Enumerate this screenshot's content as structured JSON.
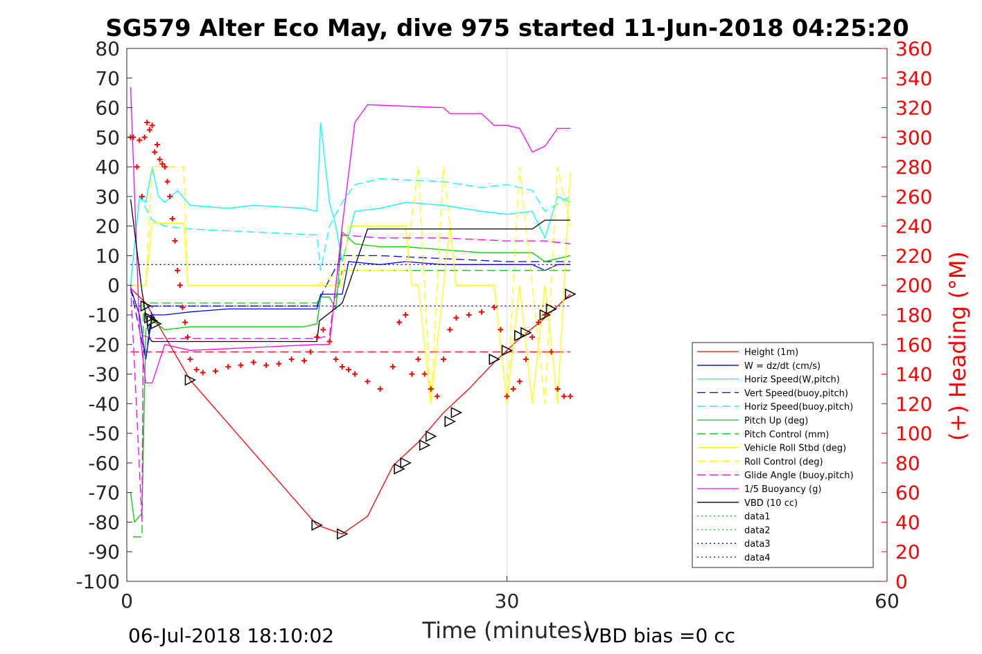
{
  "chart_data": {
    "type": "line",
    "title": "SG579 Alter Eco May, dive 975 started 11-Jun-2018 04:25:20",
    "xlabel": "Time (minutes)",
    "ylabel_right": "(+) Heading (°M)",
    "xlim": [
      0,
      60
    ],
    "ylim": [
      -100,
      80
    ],
    "ylim_right": [
      0,
      360
    ],
    "xticks": [
      "0",
      "30",
      "60"
    ],
    "yticks": [
      "80",
      "70",
      "60",
      "50",
      "40",
      "30",
      "20",
      "10",
      "0",
      "-10",
      "-20",
      "-30",
      "-40",
      "-50",
      "-60",
      "-70",
      "-80",
      "-90",
      "-100"
    ],
    "yticks_right": [
      "360",
      "340",
      "320",
      "300",
      "280",
      "260",
      "240",
      "220",
      "200",
      "180",
      "160",
      "140",
      "120",
      "100",
      "80",
      "60",
      "40",
      "20",
      "0"
    ],
    "grid": "x only",
    "legend_position": "lower-right",
    "footer_left": "06-Jul-2018 18:10:02",
    "footer_right": "VBD bias =0 cc",
    "series": [
      {
        "name": "Height (1m)",
        "color": "#ff0000",
        "style": "solid",
        "x": [
          0.3,
          1.5,
          5,
          15,
          17,
          19,
          21,
          23,
          25,
          27,
          29,
          31,
          33,
          35
        ],
        "y": [
          -1,
          -6,
          -32,
          -81,
          -84,
          -78,
          -61,
          -53,
          -43,
          -35,
          -26,
          -18,
          -11,
          -3
        ]
      },
      {
        "name": "W = dz/dt (cm/s)",
        "color": "#0000ff",
        "style": "solid",
        "x": [
          0.3,
          1,
          1.5,
          2,
          3,
          5,
          8,
          10,
          13,
          15,
          15.3,
          17,
          17.5,
          20,
          22,
          25,
          28,
          30,
          32,
          33,
          34,
          35
        ],
        "y": [
          -1,
          -10,
          -25,
          -10,
          -10,
          -9,
          -8,
          -8,
          -8,
          -8,
          -3,
          -3,
          8,
          7,
          8,
          7,
          7,
          7,
          7,
          5,
          7,
          7
        ]
      },
      {
        "name": "Horiz Speed(W,pitch)",
        "color": "#00ffff",
        "style": "solid",
        "x": [
          0.3,
          1,
          1.5,
          2,
          2.5,
          3,
          4,
          5,
          8,
          10,
          14,
          15,
          15.3,
          16,
          16.5,
          17,
          18,
          20,
          22,
          25,
          28,
          30,
          32,
          33,
          34,
          35
        ],
        "y": [
          0,
          30,
          28,
          40,
          30,
          28,
          32,
          27,
          26,
          27,
          26,
          25,
          55,
          28,
          20,
          8,
          25,
          26,
          28,
          27,
          25,
          24,
          25,
          16,
          30,
          28
        ]
      },
      {
        "name": "Vert Speed(buoy,pitch)",
        "color": "#0000ff",
        "style": "dash",
        "x": [
          0.3,
          1.5,
          2,
          5,
          10,
          15,
          15.5,
          17,
          20,
          25,
          30,
          35
        ],
        "y": [
          -1,
          -25,
          -7,
          -7,
          -7,
          -7,
          -2,
          10,
          10,
          9,
          8,
          8
        ]
      },
      {
        "name": "Horiz Speed(buoy,pitch)",
        "color": "#00ffff",
        "style": "dash",
        "x": [
          0.3,
          1,
          2,
          3,
          5,
          10,
          15,
          15.3,
          16,
          17,
          18,
          20,
          25,
          28,
          30,
          32,
          33,
          35
        ],
        "y": [
          0,
          30,
          22,
          20,
          19,
          18,
          17,
          5,
          20,
          28,
          34,
          36,
          35,
          33,
          34,
          32,
          25,
          30
        ]
      },
      {
        "name": "Pitch Up (deg)",
        "color": "#00cc00",
        "style": "solid",
        "x": [
          0.3,
          0.6,
          1.2,
          1.5,
          2,
          3,
          5,
          10,
          14,
          15,
          15.3,
          16,
          16.5,
          17,
          18,
          20,
          22,
          25,
          28,
          30,
          32,
          33,
          35
        ],
        "y": [
          -70,
          -80,
          -77,
          -15,
          -12,
          -15,
          -14,
          -14,
          -14,
          -13,
          -4,
          -4,
          -8,
          18,
          14,
          13,
          13,
          12,
          11,
          11,
          11,
          8,
          10
        ]
      },
      {
        "name": "Pitch Control (mm)",
        "color": "#00cc00",
        "style": "dash",
        "x": [
          0.5,
          1.2,
          1.3,
          2,
          15,
          15.3,
          16.5,
          17,
          18,
          35
        ],
        "y": [
          -85,
          -85,
          -6,
          -6,
          -6,
          -4,
          -4,
          5,
          5,
          5
        ]
      },
      {
        "name": "Vehicle Roll Stbd (deg)",
        "color": "#ffff00",
        "style": "solid",
        "x": [
          0.3,
          1.5,
          2,
          4.5,
          4.8,
          15,
          17,
          17.5,
          22,
          22.5,
          23,
          24,
          25,
          25.5,
          26,
          29,
          30,
          31,
          32,
          33,
          34,
          35
        ],
        "y": [
          0,
          0,
          21,
          21,
          0,
          0,
          0,
          20,
          20,
          0,
          0,
          -40,
          0,
          20,
          0,
          0,
          -40,
          0,
          -40,
          0,
          -40,
          38
        ]
      },
      {
        "name": "Roll Control (deg)",
        "color": "#ffff00",
        "style": "dash",
        "x": [
          0.3,
          1.5,
          2,
          4.5,
          4.8,
          15,
          17,
          18,
          22,
          23,
          24,
          25,
          26,
          29,
          30,
          31,
          32,
          33,
          34,
          35
        ],
        "y": [
          0,
          0,
          40,
          40,
          0,
          0,
          5,
          5,
          5,
          40,
          -40,
          40,
          0,
          0,
          -40,
          40,
          0,
          -40,
          40,
          20
        ]
      },
      {
        "name": "Glide Angle (buoy,pitch)",
        "color": "#ff00ff",
        "style": "dash",
        "x": [
          0.3,
          1.2,
          1.3,
          2,
          5,
          10,
          15,
          16,
          17,
          20,
          25,
          30,
          33,
          35
        ],
        "y": [
          0,
          -80,
          -17,
          -18,
          -18,
          -18,
          -18,
          -17,
          17,
          16,
          16,
          15,
          15,
          14
        ]
      },
      {
        "name": "1/5 Buoyancy (g)",
        "color": "#ff00ff",
        "style": "solid",
        "x": [
          0.3,
          1,
          1.5,
          2,
          3,
          5,
          10,
          15,
          16,
          17,
          18,
          19,
          25,
          25.5,
          28,
          29,
          30,
          31,
          32,
          33,
          34,
          35
        ],
        "y": [
          67,
          -15,
          -33,
          -33,
          -20,
          -22,
          -21,
          -20,
          -20,
          20,
          55,
          61,
          60,
          58,
          58,
          54,
          54,
          53,
          45,
          47,
          53,
          53
        ]
      },
      {
        "name": "VBD (10 cc)",
        "color": "#000000",
        "style": "solid",
        "x": [
          0.3,
          1.2,
          1.8,
          2,
          5,
          15,
          15.2,
          17,
          17.5,
          19,
          20,
          30,
          32,
          33,
          35
        ],
        "y": [
          29,
          -2,
          -18,
          -19,
          -19,
          -19,
          -12,
          -6,
          0,
          19,
          19,
          19,
          19,
          22,
          22
        ]
      },
      {
        "name": "data1",
        "color": "#00cc00",
        "style": "dot",
        "x": [],
        "y": []
      },
      {
        "name": "data2",
        "color": "#00cc00",
        "style": "dot",
        "x": [],
        "y": []
      },
      {
        "name": "data3",
        "color": "#0000aa",
        "style": "dot",
        "x": [
          0.3,
          35
        ],
        "y": [
          7,
          7
        ]
      },
      {
        "name": "data4",
        "color": "#0000aa",
        "style": "dot",
        "x": [
          0.3,
          35
        ],
        "y": [
          -7,
          -7
        ]
      }
    ],
    "extra_lines": [
      {
        "color": "#ff0000",
        "style": "dash",
        "y_right": 155,
        "x": [
          0.3,
          35
        ]
      }
    ],
    "heading_points": {
      "color": "#ff0000",
      "marker": "+",
      "x": [
        0.3,
        0.5,
        0.8,
        1,
        1.2,
        1.4,
        1.6,
        1.8,
        2,
        2.2,
        2.4,
        2.6,
        2.8,
        3,
        3.2,
        3.4,
        3.6,
        3.8,
        4,
        4.2,
        4.4,
        4.6,
        4.8,
        5,
        5.5,
        6,
        7,
        8,
        9,
        10,
        11,
        12,
        13,
        14,
        14.5,
        15,
        15.5,
        16,
        16.5,
        17,
        17.5,
        18,
        19,
        20,
        21,
        21.5,
        22,
        22.5,
        23,
        23.5,
        24,
        24.5,
        25,
        25.5,
        26,
        27,
        28,
        29,
        29.5,
        30,
        30.5,
        31,
        31.5,
        32,
        32.5,
        33,
        33.5,
        34,
        34.5,
        35
      ],
      "y": [
        300,
        300,
        280,
        298,
        260,
        300,
        310,
        305,
        308,
        290,
        295,
        285,
        282,
        280,
        270,
        260,
        245,
        230,
        210,
        200,
        185,
        175,
        165,
        150,
        143,
        141,
        142,
        145,
        146,
        148,
        146,
        147,
        150,
        149,
        155,
        165,
        170,
        162,
        150,
        145,
        143,
        140,
        135,
        130,
        145,
        175,
        180,
        140,
        150,
        140,
        130,
        125,
        150,
        170,
        178,
        180,
        182,
        185,
        170,
        125,
        130,
        135,
        150,
        165,
        175,
        180,
        155,
        130,
        125,
        125
      ]
    },
    "markers": {
      "type": "triangle",
      "x": [
        1.5,
        1.8,
        2,
        2.3,
        5,
        15,
        17,
        21.5,
        22,
        23.5,
        24,
        25.5,
        26,
        29,
        30,
        31,
        31.5,
        33,
        33.5,
        35
      ],
      "y": [
        -7,
        -11,
        -12,
        -13,
        -32,
        -81,
        -84,
        -62,
        -60,
        -54,
        -51,
        -46,
        -43,
        -25,
        -22,
        -17,
        -16,
        -10,
        -8,
        -3
      ]
    }
  }
}
